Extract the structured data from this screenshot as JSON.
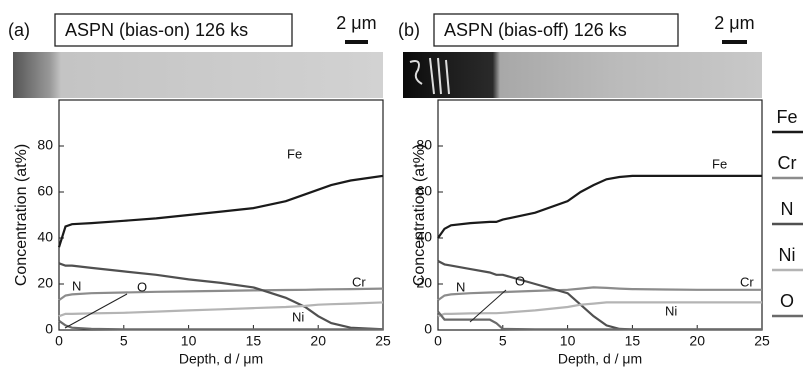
{
  "chart_data": [
    {
      "type": "line",
      "panel": "(a)",
      "title": "ASPN (bias-on) 126 ks",
      "scale_bar": "2 μm",
      "xlabel": "Depth, d / μm",
      "ylabel": "Concentration (at%)",
      "x": [
        0,
        0.5,
        1,
        2.5,
        5,
        7.5,
        10,
        12.5,
        15,
        17.5,
        19,
        20,
        21,
        22.5,
        25
      ],
      "xlim": [
        0,
        25
      ],
      "xticks": [
        0,
        5,
        10,
        15,
        20,
        25
      ],
      "ylim": [
        0,
        100
      ],
      "yticks": [
        0,
        20,
        40,
        60,
        80
      ],
      "series": [
        {
          "name": "Fe",
          "color": "#1a1a1a",
          "values": [
            36,
            45,
            46,
            46.5,
            47.5,
            48.5,
            50,
            51.5,
            53,
            56,
            59,
            61,
            63,
            65,
            67
          ]
        },
        {
          "name": "Cr",
          "color": "#8c8c8c",
          "values": [
            13,
            15,
            15.5,
            16,
            16.3,
            16.6,
            16.8,
            17,
            17.2,
            17.4,
            17.5,
            17.6,
            17.7,
            17.8,
            18
          ]
        },
        {
          "name": "N",
          "color": "#505050",
          "values": [
            29,
            28,
            28,
            27,
            25.5,
            24,
            22,
            20.5,
            18.5,
            14,
            10,
            6,
            3,
            1,
            0.3
          ]
        },
        {
          "name": "Ni",
          "color": "#b4b4b4",
          "values": [
            6,
            7,
            7,
            7.2,
            7.5,
            8,
            8.5,
            9,
            9.5,
            10,
            10.5,
            11,
            11.2,
            11.5,
            12
          ]
        },
        {
          "name": "O",
          "color": "#6a6a6a",
          "values": [
            4,
            2,
            1,
            0.5,
            0.3,
            0.3,
            0.3,
            0.3,
            0.3,
            0.3,
            0.3,
            0.3,
            0.3,
            0.3,
            0.3
          ]
        }
      ]
    },
    {
      "type": "line",
      "panel": "(b)",
      "title": "ASPN (bias-off) 126 ks",
      "scale_bar": "2 μm",
      "xlabel": "Depth, d / μm",
      "ylabel": "Concentration (at%)",
      "x": [
        0,
        0.5,
        1,
        2.5,
        4,
        4.5,
        5,
        7.5,
        10,
        11,
        12,
        13,
        14,
        15,
        17.5,
        20,
        25
      ],
      "xlim": [
        0,
        25
      ],
      "xticks": [
        0,
        5,
        10,
        15,
        20,
        25
      ],
      "ylim": [
        0,
        100
      ],
      "yticks": [
        0,
        20,
        40,
        60,
        80
      ],
      "series": [
        {
          "name": "Fe",
          "color": "#1a1a1a",
          "values": [
            40,
            44,
            45.5,
            46.5,
            47,
            47,
            48,
            51,
            56,
            60,
            63,
            65.5,
            66.5,
            67,
            67,
            67,
            67
          ]
        },
        {
          "name": "Cr",
          "color": "#8c8c8c",
          "values": [
            13,
            15,
            15.5,
            16,
            16.3,
            16.4,
            16.5,
            17,
            17.5,
            18,
            18.5,
            18.3,
            18,
            17.8,
            17.6,
            17.5,
            17.5
          ]
        },
        {
          "name": "N",
          "color": "#505050",
          "values": [
            30,
            28.5,
            28,
            26.5,
            25,
            24,
            24,
            20,
            16,
            11,
            6,
            2,
            0.5,
            0.2,
            0.2,
            0.2,
            0.2
          ]
        },
        {
          "name": "Ni",
          "color": "#b4b4b4",
          "values": [
            6,
            7,
            7,
            7.2,
            7.3,
            7.3,
            7.5,
            8.5,
            10,
            11,
            11.5,
            12,
            12,
            12,
            12,
            12,
            12
          ]
        },
        {
          "name": "O",
          "color": "#6a6a6a",
          "values": [
            8,
            4.5,
            4.5,
            4.5,
            4.5,
            3,
            0.5,
            0.3,
            0.3,
            0.3,
            0.3,
            0.3,
            0.3,
            0.3,
            0.3,
            0.3,
            0.3
          ]
        }
      ]
    }
  ]
}
